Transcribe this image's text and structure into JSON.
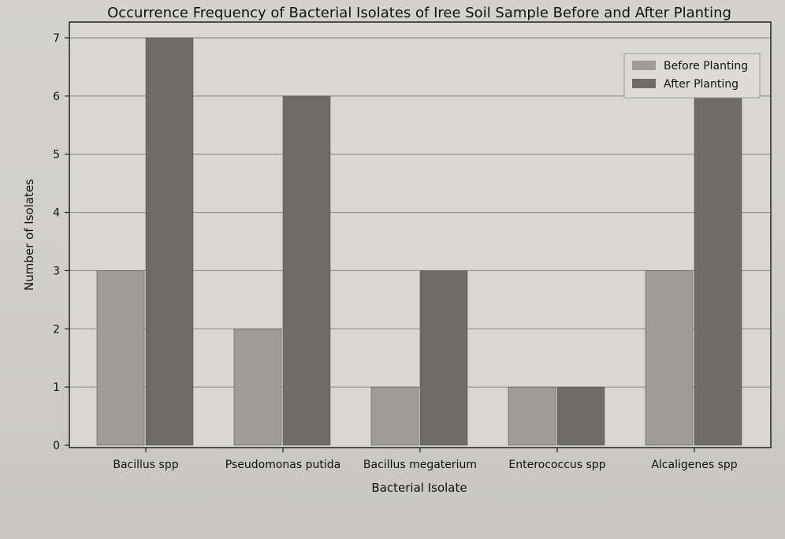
{
  "chart_data": {
    "type": "bar",
    "title": "Occurrence Frequency of Bacterial Isolates of Iree Soil Sample Before and After Planting",
    "xlabel": "Bacterial Isolate",
    "ylabel": "Number of Isolates",
    "categories": [
      "Bacillus spp",
      "Pseudomonas putida",
      "Bacillus megaterium",
      "Enterococcus spp",
      "Alcaligenes spp"
    ],
    "series": [
      {
        "name": "Before Planting",
        "values": [
          3,
          2,
          1,
          1,
          3
        ],
        "color": "#9e9c98"
      },
      {
        "name": "After Planting",
        "values": [
          7,
          6,
          3,
          1,
          6
        ],
        "color": "#6e6c69"
      }
    ],
    "ylim": [
      0,
      7
    ],
    "yticks": [
      "0",
      "1",
      "2",
      "3",
      "4",
      "5",
      "6",
      "7"
    ],
    "grid": true,
    "legend_position": "top-right"
  }
}
